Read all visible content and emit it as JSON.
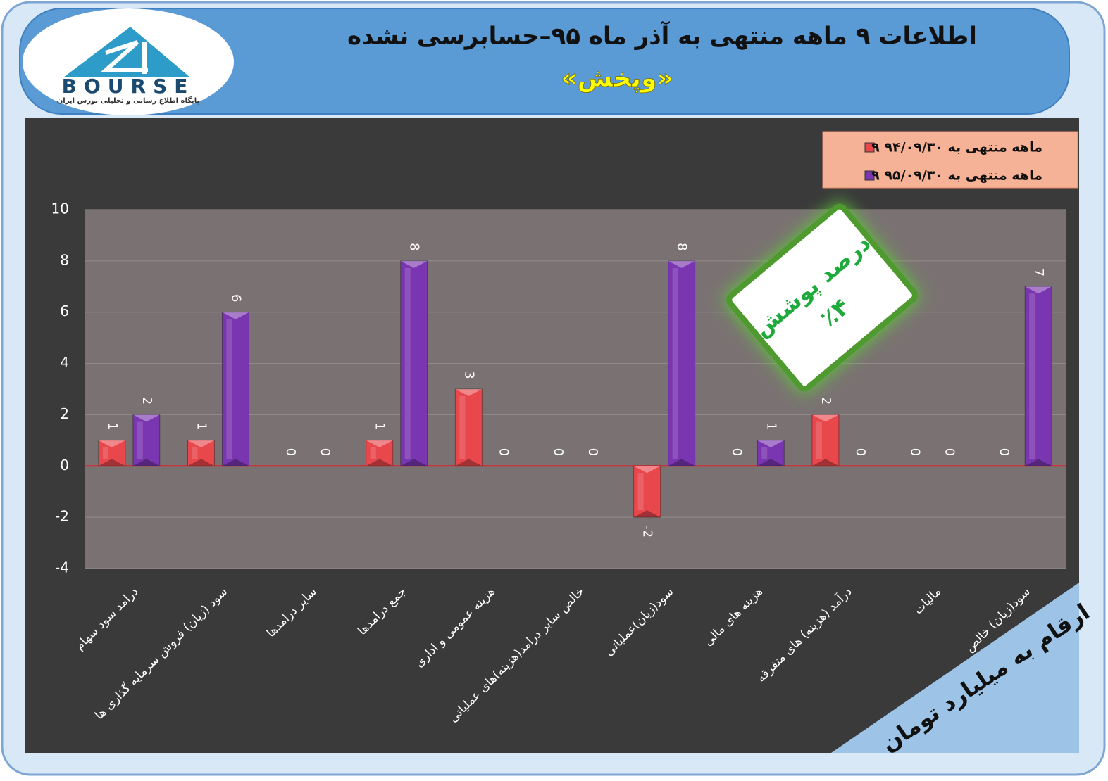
{
  "chart_data": {
    "type": "bar",
    "title": "اطلاعات ۹ ماهه منتهی به آذر ماه ۹۵–حسابرسی نشده",
    "subtitle": "«وپخش»",
    "logo": {
      "text": "BOURSE",
      "caption": "پایگاه اطلاع رسانی و تحلیلی بورس ایران"
    },
    "categories": [
      "درامد سود سهام",
      "سود (زیان) فروش سرمایه گذاری ها",
      "سایر درامدها",
      "جمع درامدها",
      "هزینه عمومی و اداری",
      "خالص سایر درامد(هزینه)های عملیاتی",
      "سود(زیان)عملیاتی",
      "هزینه های مالی",
      "درآمد (هزینه) های متفرقه",
      "مالیات",
      "سود(زیان) خالص"
    ],
    "series": [
      {
        "name": "۹ ماهه منتهی به ۹۴/۰۹/۳۰",
        "color": "#e8474c",
        "values": [
          1,
          1,
          0,
          1,
          3,
          0,
          -2,
          0,
          2,
          0,
          0
        ]
      },
      {
        "name": "۹ ماهه منتهی به ۹۵/۰۹/۳۰",
        "color": "#7a35b0",
        "values": [
          2,
          6,
          0,
          8,
          0,
          0,
          8,
          1,
          0,
          0,
          7
        ]
      }
    ],
    "ylim": [
      -4,
      10
    ],
    "yticks": [
      -4,
      -2,
      0,
      2,
      4,
      6,
      8,
      10
    ],
    "grid": true,
    "legend": "top-right",
    "annotations": {
      "coverage_title": "درصد پوشش",
      "coverage_value": "٪۴",
      "unit_note": "ارقام به میلیارد تومان"
    }
  }
}
